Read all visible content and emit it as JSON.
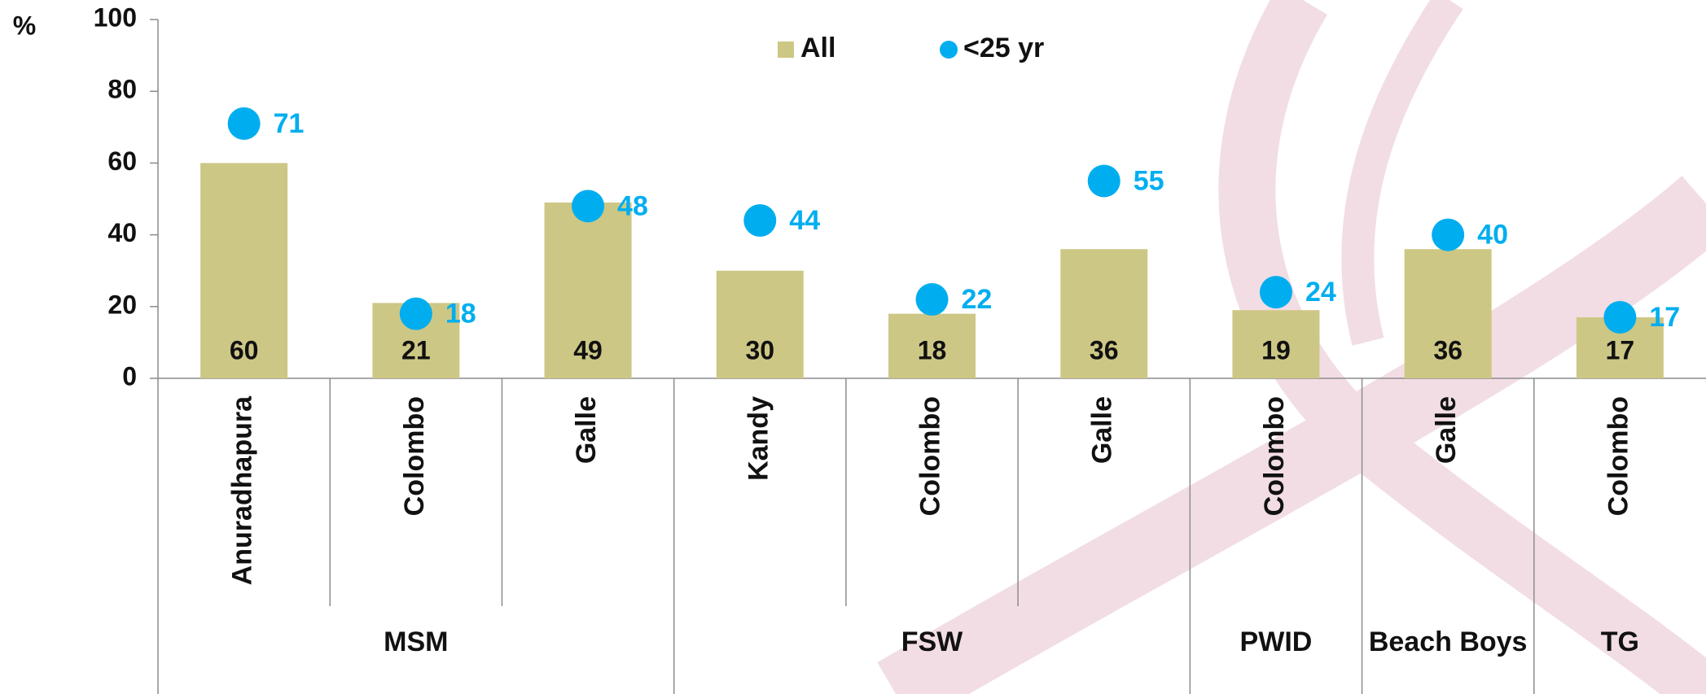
{
  "chart_data": {
    "type": "bar",
    "ylabel": "%",
    "groups": [
      {
        "name": "MSM",
        "categories": [
          "Anuradhapura",
          "Colombo",
          "Galle"
        ]
      },
      {
        "name": "FSW",
        "categories": [
          "Kandy",
          "Colombo",
          "Galle"
        ]
      },
      {
        "name": "PWID",
        "categories": [
          "Colombo"
        ]
      },
      {
        "name": "Beach Boys",
        "categories": [
          "Galle"
        ]
      },
      {
        "name": "TG",
        "categories": [
          "Colombo"
        ]
      }
    ],
    "series": [
      {
        "name": "All",
        "style": "bar",
        "color": "#cdc785",
        "values": [
          60,
          21,
          49,
          30,
          18,
          36,
          19,
          36,
          17
        ]
      },
      {
        "name": "<25 yr",
        "style": "dot",
        "color": "#00aeef",
        "values": [
          71,
          18,
          48,
          44,
          22,
          55,
          24,
          40,
          17
        ]
      }
    ],
    "ylim": [
      0,
      100
    ],
    "yticks": [
      0,
      20,
      40,
      60,
      80,
      100
    ],
    "grid": false,
    "legend": "top"
  }
}
